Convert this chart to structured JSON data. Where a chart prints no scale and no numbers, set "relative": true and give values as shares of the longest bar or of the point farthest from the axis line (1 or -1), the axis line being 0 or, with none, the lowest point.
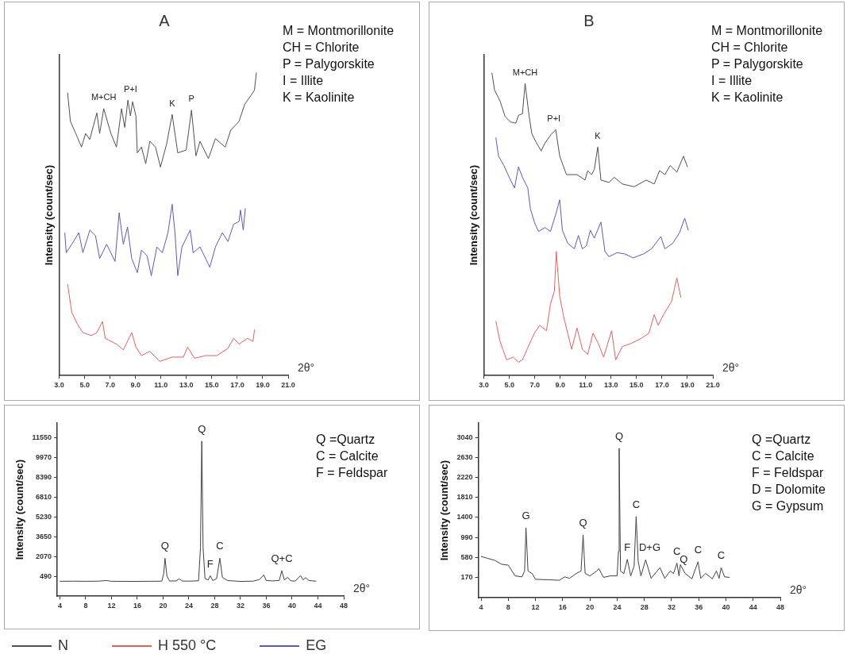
{
  "chart_data": [
    {
      "type": "line",
      "title": "A",
      "xlabel": "2θ°",
      "ylabel": "Intensity (count/sec)",
      "relative": true,
      "legend": "bottom",
      "xlim": [
        3,
        21
      ],
      "xticks": [
        {
          "value": 3,
          "label": "3.0"
        },
        {
          "value": 5,
          "label": "5.0"
        },
        {
          "value": 7,
          "label": "7.0"
        },
        {
          "value": 9,
          "label": "9.0"
        },
        {
          "value": 11,
          "label": "11.0"
        },
        {
          "value": 13,
          "label": "13.0"
        },
        {
          "value": 15,
          "label": "15.0"
        },
        {
          "value": 17,
          "label": "17.0"
        },
        {
          "value": 19,
          "label": "19.0"
        },
        {
          "value": 21,
          "label": "21.0"
        }
      ],
      "series": [
        {
          "name": "N",
          "color": "#505050",
          "x": [
            3.66,
            3.88,
            4.3,
            4.75,
            5.08,
            5.4,
            5.96,
            6.18,
            6.5,
            7.06,
            7.5,
            7.9,
            8.15,
            8.4,
            8.6,
            8.77,
            9.03,
            9.14,
            9.47,
            9.8,
            10.13,
            10.57,
            10.96,
            11.44,
            11.88,
            12.32,
            12.98,
            13.4,
            13.75,
            14.07,
            14.73,
            15.28,
            16.05,
            16.49,
            17.14,
            17.58,
            18.13,
            18.35,
            18.5
          ],
          "values": [
            0.934,
            0.84,
            0.8,
            0.755,
            0.8,
            0.78,
            0.868,
            0.8,
            0.882,
            0.8,
            0.755,
            0.882,
            0.82,
            0.91,
            0.858,
            0.905,
            0.858,
            0.736,
            0.755,
            0.7,
            0.774,
            0.755,
            0.689,
            0.764,
            0.863,
            0.736,
            0.745,
            0.877,
            0.726,
            0.774,
            0.717,
            0.783,
            0.755,
            0.811,
            0.84,
            0.896,
            0.929,
            0.943,
            1.0
          ]
        },
        {
          "name": "H 550 °C",
          "color": "#e06060",
          "x": [
            3.66,
            3.99,
            4.43,
            4.86,
            5.52,
            5.96,
            6.4,
            6.62,
            7.5,
            8.04,
            8.7,
            9.03,
            9.47,
            10.13,
            10.9,
            11.88,
            12.76,
            13.09,
            13.64,
            14.51,
            15.39,
            16.27,
            16.71,
            17.14,
            17.8,
            18.24,
            18.35
          ],
          "values": [
            0.302,
            0.208,
            0.17,
            0.142,
            0.132,
            0.142,
            0.179,
            0.123,
            0.104,
            0.085,
            0.142,
            0.094,
            0.066,
            0.08,
            0.047,
            0.061,
            0.061,
            0.094,
            0.057,
            0.066,
            0.066,
            0.09,
            0.123,
            0.104,
            0.123,
            0.113,
            0.151
          ]
        },
        {
          "name": "EG",
          "color": "#5a5ab8",
          "x": [
            3.44,
            3.55,
            3.99,
            4.54,
            4.86,
            5.41,
            5.85,
            6.18,
            6.73,
            7.39,
            7.71,
            8.04,
            8.37,
            8.7,
            9.14,
            9.47,
            9.91,
            10.24,
            10.68,
            11.11,
            11.55,
            11.88,
            12.1,
            12.32,
            12.65,
            13.3,
            13.53,
            14.07,
            14.84,
            15.28,
            15.83,
            16.27,
            16.71,
            17.14,
            17.25,
            17.47,
            17.63
          ],
          "values": [
            0.472,
            0.406,
            0.434,
            0.472,
            0.406,
            0.481,
            0.462,
            0.387,
            0.434,
            0.377,
            0.538,
            0.434,
            0.491,
            0.387,
            0.34,
            0.415,
            0.396,
            0.33,
            0.425,
            0.406,
            0.472,
            0.566,
            0.472,
            0.33,
            0.425,
            0.481,
            0.406,
            0.425,
            0.358,
            0.425,
            0.472,
            0.443,
            0.5,
            0.509,
            0.547,
            0.481,
            0.552
          ]
        }
      ],
      "annotations": [
        "M = Montmorillonite",
        "CH = Chlorite",
        "P = Palygorskite",
        "I = Illite",
        "K = Kaolinite",
        {
          "text": "M+CH",
          "x": 6.5,
          "y": 0.882
        },
        {
          "text": "P+I",
          "x": 8.6,
          "y": 0.91
        },
        {
          "text": "K",
          "x": 11.88,
          "y": 0.863
        },
        {
          "text": "P",
          "x": 13.4,
          "y": 0.877
        }
      ]
    },
    {
      "type": "line",
      "title": "B",
      "xlabel": "2θ°",
      "ylabel": "Intensity (count/sec)",
      "relative": true,
      "xlim": [
        3,
        21
      ],
      "xticks": [
        {
          "value": 3,
          "label": "3.0"
        },
        {
          "value": 5,
          "label": "5.0"
        },
        {
          "value": 7,
          "label": "7.0"
        },
        {
          "value": 9,
          "label": "9.0"
        },
        {
          "value": 11,
          "label": "11.0"
        },
        {
          "value": 13,
          "label": "13.0"
        },
        {
          "value": 15,
          "label": "15.0"
        },
        {
          "value": 17,
          "label": "17.0"
        },
        {
          "value": 19,
          "label": "19.0"
        },
        {
          "value": 21,
          "label": "21.0"
        }
      ],
      "series": [
        {
          "color": "#505050",
          "x": [
            3.63,
            3.84,
            4.26,
            4.67,
            5.09,
            5.51,
            5.72,
            6.03,
            6.24,
            6.56,
            6.77,
            7.08,
            7.5,
            7.81,
            8.33,
            8.65,
            8.96,
            9.49,
            10.32,
            10.95,
            11.16,
            11.47,
            11.68,
            11.95,
            12.2,
            12.83,
            13.25,
            13.88,
            14.82,
            15.76,
            16.39,
            16.81,
            17.23,
            17.64,
            18.17,
            18.69,
            19.0
          ],
          "values": [
            1.0,
            0.943,
            0.908,
            0.856,
            0.838,
            0.834,
            0.86,
            0.865,
            0.965,
            0.856,
            0.799,
            0.773,
            0.742,
            0.769,
            0.799,
            0.812,
            0.725,
            0.664,
            0.664,
            0.646,
            0.677,
            0.664,
            0.681,
            0.755,
            0.646,
            0.638,
            0.655,
            0.633,
            0.624,
            0.646,
            0.633,
            0.677,
            0.664,
            0.694,
            0.672,
            0.725,
            0.69
          ]
        },
        {
          "color": "#5a5ab8",
          "x": [
            3.94,
            4.15,
            4.57,
            5.09,
            5.41,
            5.72,
            6.03,
            6.45,
            6.66,
            6.97,
            7.29,
            7.81,
            8.23,
            8.65,
            8.96,
            9.17,
            9.59,
            10.11,
            10.43,
            10.74,
            11.05,
            11.37,
            11.68,
            12.2,
            12.52,
            12.83,
            13.46,
            14.09,
            14.72,
            15.56,
            16.18,
            16.91,
            17.23,
            17.85,
            18.38,
            18.79,
            19.07
          ],
          "values": [
            0.786,
            0.725,
            0.694,
            0.646,
            0.62,
            0.69,
            0.655,
            0.62,
            0.55,
            0.507,
            0.476,
            0.489,
            0.476,
            0.533,
            0.581,
            0.48,
            0.437,
            0.419,
            0.463,
            0.419,
            0.428,
            0.48,
            0.454,
            0.507,
            0.41,
            0.393,
            0.406,
            0.402,
            0.389,
            0.402,
            0.419,
            0.459,
            0.419,
            0.437,
            0.472,
            0.52,
            0.48
          ]
        },
        {
          "color": "#e06060",
          "x": [
            3.94,
            4.26,
            4.78,
            5.3,
            5.72,
            6.03,
            6.45,
            6.97,
            7.39,
            7.92,
            8.23,
            8.54,
            8.69,
            8.96,
            9.28,
            9.9,
            10.32,
            10.74,
            11.16,
            11.58,
            12.0,
            12.41,
            13.04,
            13.36,
            13.88,
            14.51,
            15.34,
            15.97,
            16.39,
            16.7,
            17.12,
            17.75,
            18.17,
            18.48
          ],
          "values": [
            0.179,
            0.114,
            0.052,
            0.061,
            0.044,
            0.052,
            0.092,
            0.14,
            0.166,
            0.148,
            0.236,
            0.279,
            0.41,
            0.262,
            0.192,
            0.087,
            0.157,
            0.087,
            0.07,
            0.14,
            0.105,
            0.061,
            0.148,
            0.052,
            0.096,
            0.105,
            0.122,
            0.14,
            0.201,
            0.166,
            0.201,
            0.245,
            0.323,
            0.258
          ]
        }
      ],
      "annotations": [
        "M = Montmorillonite",
        "CH = Chlorite",
        "P = Palygorskite",
        "I = Illite",
        "K = Kaolinite",
        {
          "text": "M+CH",
          "x": 6.24,
          "y": 0.965
        },
        {
          "text": "P+I",
          "x": 8.5,
          "y": 0.812
        },
        {
          "text": "K",
          "x": 11.95,
          "y": 0.755
        }
      ]
    },
    {
      "type": "line",
      "xlabel": "2θ°",
      "ylabel": "Intensity (count/sec)",
      "xlim": [
        3.6,
        48
      ],
      "xticks": [
        4,
        8,
        12,
        16,
        20,
        24,
        28,
        32,
        36,
        40,
        44,
        48
      ],
      "ylim": [
        -1100,
        12700
      ],
      "yticks": [
        490,
        2070,
        3650,
        5230,
        6810,
        8390,
        9970,
        11550
      ],
      "series": [
        {
          "color": "#404040",
          "x": [
            4,
            6,
            8,
            10,
            11.2,
            12,
            16,
            18,
            19.8,
            20.1,
            20.3,
            20.6,
            21,
            22,
            22.5,
            23,
            24,
            25.5,
            25.8,
            26.0,
            26.2,
            26.5,
            27.0,
            27.3,
            27.7,
            28.3,
            28.8,
            29.2,
            30,
            32,
            34,
            35,
            35.6,
            36,
            37,
            38,
            38.4,
            38.8,
            39.3,
            39.8,
            40.5,
            41.3,
            41.7,
            42.1,
            42.6,
            43.7
          ],
          "values": [
            90,
            100,
            90,
            100,
            150,
            90,
            80,
            90,
            100,
            700,
            1930,
            500,
            110,
            120,
            280,
            110,
            100,
            130,
            2800,
            11260,
            2800,
            300,
            200,
            530,
            150,
            300,
            1930,
            400,
            150,
            80,
            100,
            250,
            600,
            150,
            120,
            150,
            930,
            200,
            400,
            120,
            110,
            550,
            200,
            380,
            150,
            100
          ]
        }
      ],
      "annotations": [
        "Q =Quartz",
        "C = Calcite",
        "F = Feldspar",
        {
          "text": "Q",
          "x": 20.3,
          "y": 1930
        },
        {
          "text": "Q",
          "x": 26.0,
          "y": 11260
        },
        {
          "text": "F",
          "x": 27.3,
          "y": 530
        },
        {
          "text": "C",
          "x": 28.8,
          "y": 1930
        },
        {
          "text": "Q+C",
          "x": 38.4,
          "y": 930
        }
      ]
    },
    {
      "type": "line",
      "xlabel": "2θ°",
      "ylabel": "Intensity (count/sec)",
      "xlim": [
        3.6,
        48
      ],
      "xticks": [
        4,
        8,
        12,
        16,
        20,
        24,
        28,
        32,
        36,
        40,
        44,
        48
      ],
      "ylim": [
        -250,
        3340
      ],
      "yticks": [
        170,
        580,
        990,
        1400,
        1810,
        2220,
        2630,
        3040
      ],
      "series": [
        {
          "color": "#404040",
          "x": [
            4,
            5,
            6,
            7,
            8,
            9,
            10,
            10.4,
            10.6,
            10.9,
            11.5,
            12,
            14,
            15.5,
            16.3,
            17,
            18,
            18.7,
            19.0,
            19.3,
            20,
            21,
            21.3,
            22,
            23,
            24,
            24.2,
            24.3,
            24.5,
            25,
            25.5,
            26,
            26.5,
            26.8,
            27.1,
            27.5,
            28.2,
            29,
            30.3,
            31,
            31.8,
            32.3,
            32.8,
            33.1,
            33.3,
            34,
            35,
            35.9,
            36.3,
            37,
            38,
            38.6,
            39,
            39.3,
            39.8,
            40.5
          ],
          "values": [
            600,
            560,
            520,
            440,
            420,
            200,
            180,
            300,
            1190,
            300,
            250,
            130,
            120,
            110,
            180,
            150,
            250,
            300,
            1040,
            250,
            200,
            300,
            350,
            170,
            200,
            200,
            700,
            2820,
            300,
            250,
            540,
            200,
            400,
            1420,
            500,
            200,
            530,
            150,
            370,
            150,
            300,
            250,
            460,
            200,
            430,
            250,
            140,
            490,
            150,
            250,
            140,
            300,
            150,
            370,
            180,
            170
          ]
        }
      ],
      "annotations": [
        "Q =Quartz",
        "C = Calcite",
        "F = Feldspar",
        "D = Dolomite",
        "G = Gypsum",
        {
          "text": "G",
          "x": 10.6,
          "y": 1190
        },
        {
          "text": "Q",
          "x": 19.0,
          "y": 1040
        },
        {
          "text": "Q",
          "x": 24.3,
          "y": 2820
        },
        {
          "text": "F",
          "x": 25.5,
          "y": 540
        },
        {
          "text": "C",
          "x": 26.8,
          "y": 1420
        },
        {
          "text": "D+G",
          "x": 28.8,
          "y": 530
        },
        {
          "text": "C",
          "x": 32.8,
          "y": 460
        },
        {
          "text": "Q",
          "x": 33.8,
          "y": 300
        },
        {
          "text": "C",
          "x": 35.9,
          "y": 490
        },
        {
          "text": "C",
          "x": 39.3,
          "y": 370
        }
      ]
    }
  ]
}
